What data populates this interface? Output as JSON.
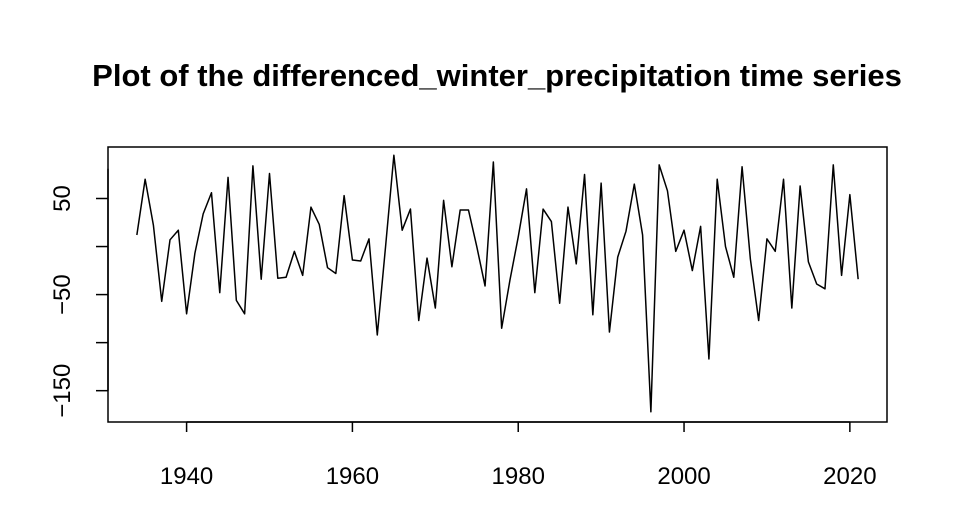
{
  "chart_data": {
    "type": "line",
    "title": "Plot of the differenced_winter_precipitation time series",
    "xlabel": "",
    "ylabel": "",
    "xlim": [
      1934,
      2021
    ],
    "ylim": [
      -172,
      93
    ],
    "x_ticks": [
      1940,
      1960,
      1980,
      2000,
      2020
    ],
    "y_ticks": [
      50,
      -50,
      -150
    ],
    "y_minor_ticks": [
      0,
      -100
    ],
    "grid": false,
    "series": [
      {
        "x": [
          1934,
          1935,
          1936,
          1937,
          1938,
          1939,
          1940,
          1941,
          1942,
          1943,
          1944,
          1945,
          1946,
          1947,
          1948,
          1949,
          1950,
          1951,
          1952,
          1953,
          1954,
          1955,
          1956,
          1957,
          1958,
          1959,
          1960,
          1961,
          1962,
          1963,
          1964,
          1965,
          1966,
          1967,
          1968,
          1969,
          1970,
          1971,
          1972,
          1973,
          1974,
          1975,
          1976,
          1977,
          1978,
          1979,
          1980,
          1981,
          1982,
          1983,
          1984,
          1985,
          1986,
          1987,
          1988,
          1989,
          1990,
          1991,
          1992,
          1993,
          1994,
          1995,
          1996,
          1997,
          1998,
          1999,
          2000,
          2001,
          2002,
          2003,
          2004,
          2005,
          2006,
          2007,
          2008,
          2009,
          2010,
          2011,
          2012,
          2013,
          2014,
          2015,
          2016,
          2017,
          2018,
          2019,
          2020,
          2021
        ],
        "values": [
          12,
          70,
          22,
          -57,
          7,
          17,
          -70,
          -7,
          34,
          56,
          -48,
          72,
          -56,
          -70,
          84,
          -34,
          76,
          -33,
          -32,
          -5,
          -30,
          41,
          23,
          -22,
          -28,
          53,
          -14,
          -15,
          8,
          -92,
          0,
          95,
          17,
          39,
          -77,
          -12,
          -64,
          48,
          -21,
          38,
          38,
          0,
          -41,
          88,
          -85,
          -35,
          10,
          60,
          -48,
          39,
          26,
          -59,
          41,
          -18,
          75,
          -71,
          66,
          -89,
          -11,
          16,
          65,
          12,
          -172,
          85,
          58,
          -5,
          17,
          -25,
          21,
          -117,
          70,
          0,
          -32,
          83,
          -13,
          -77,
          8,
          -5,
          70,
          -64,
          63,
          -16,
          -39,
          -44,
          85,
          -30,
          54,
          -34
        ]
      }
    ]
  }
}
